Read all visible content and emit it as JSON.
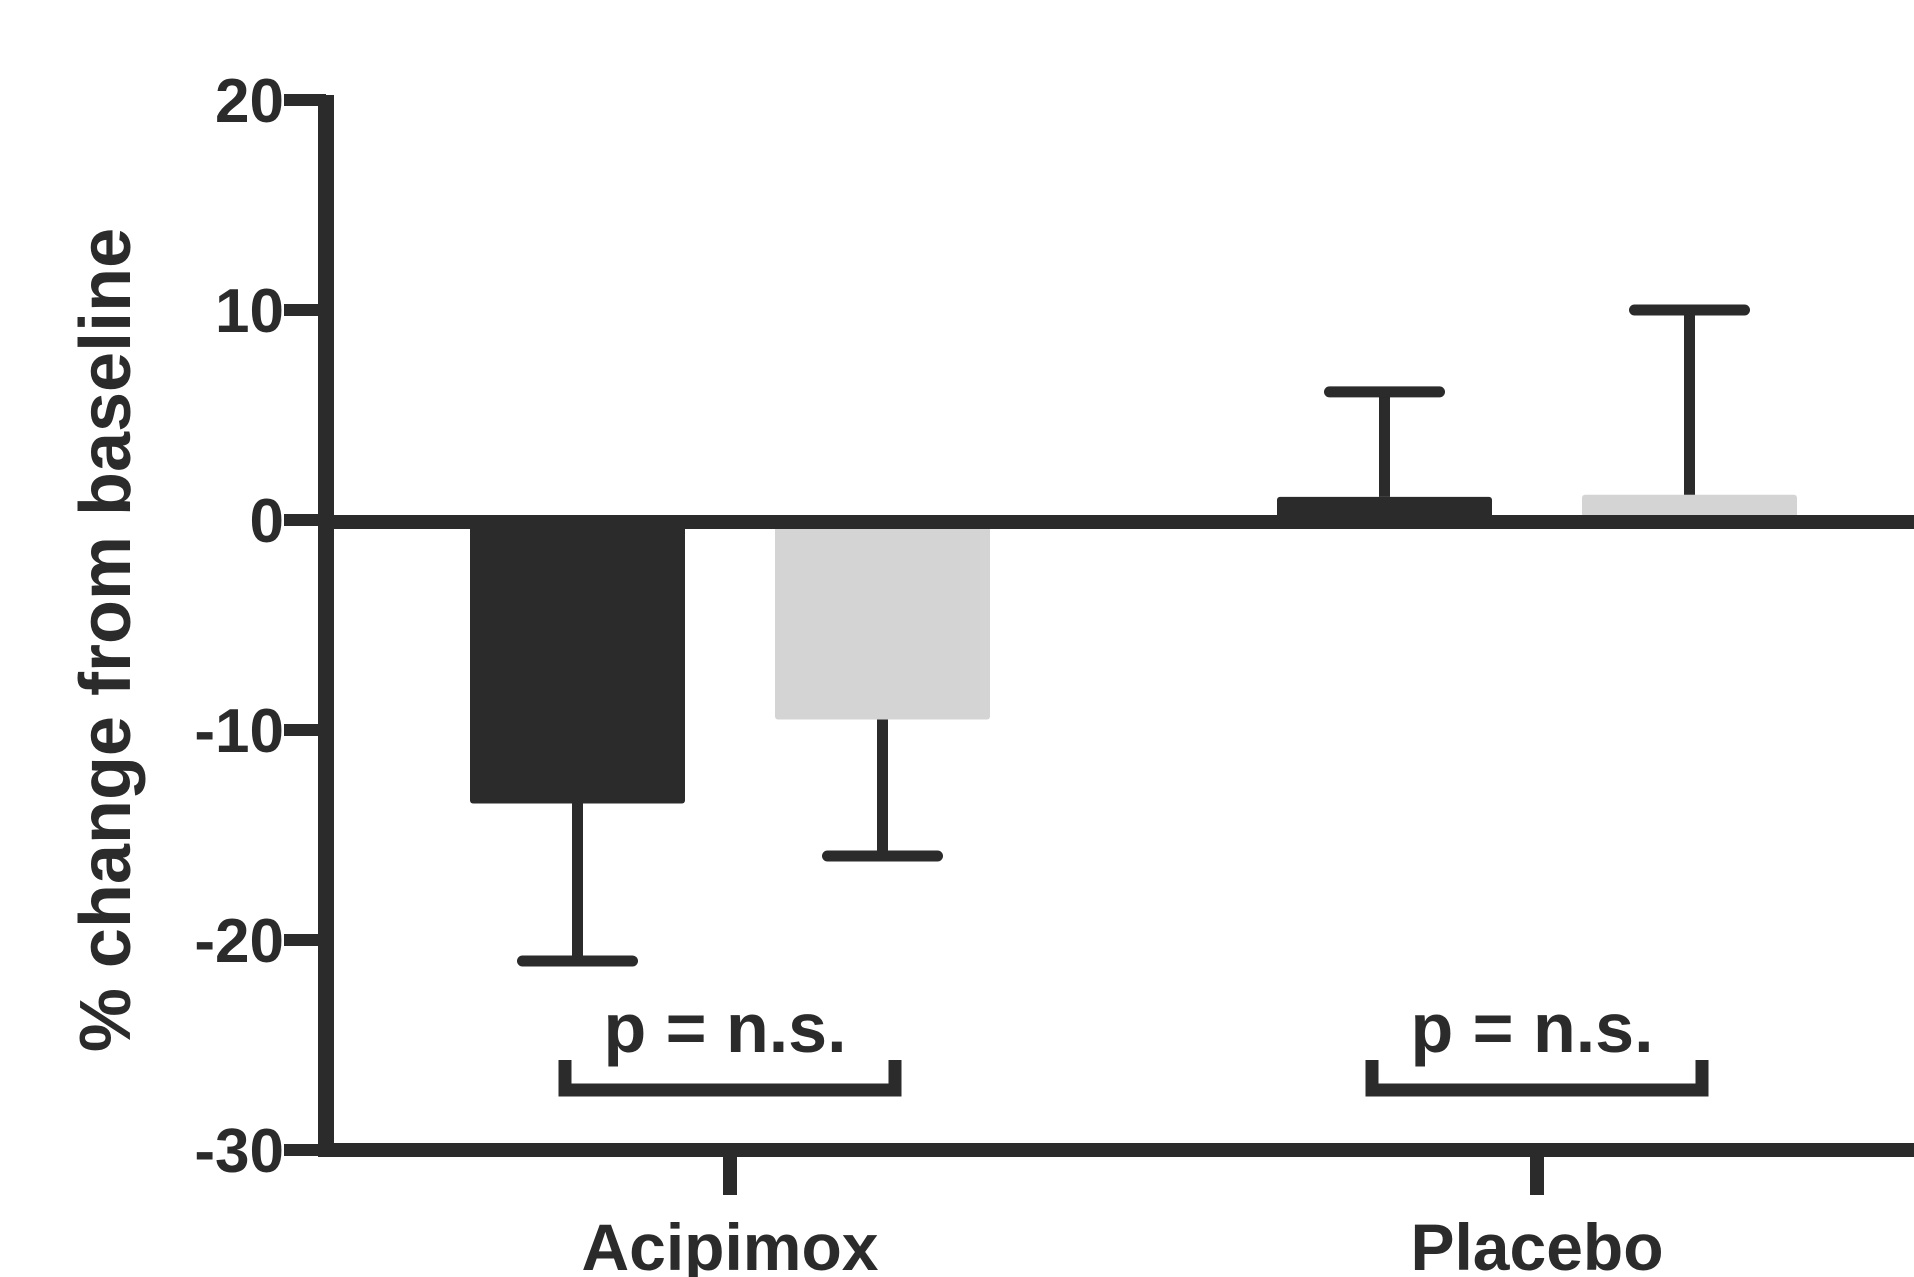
{
  "chart_data": {
    "type": "bar",
    "categories": [
      "Acipimox",
      "Placebo"
    ],
    "series": [
      {
        "values": [
          -13.5,
          1.1
        ],
        "errors": [
          7.5,
          5.0
        ],
        "color": "#2b2b2b"
      },
      {
        "values": [
          -9.5,
          1.2
        ],
        "errors": [
          6.5,
          8.8
        ],
        "color": "#d4d4d4"
      }
    ],
    "ylabel": "% change from baseline",
    "xlabel": "",
    "title": "",
    "ylim": [
      -30,
      20
    ],
    "yticks": [
      20,
      10,
      0,
      -10,
      -20,
      -30
    ],
    "ytick_labels": [
      "20",
      "10",
      "0",
      "-10",
      "-20",
      "-30"
    ],
    "annotations": [
      "p = n.s.",
      "p = n.s."
    ],
    "grid": false,
    "legend": "none"
  }
}
